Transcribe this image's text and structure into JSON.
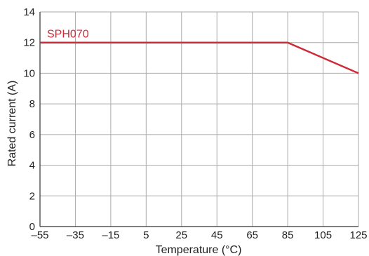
{
  "chart_data": {
    "type": "line",
    "title": "",
    "xlabel": "Temperature (°C)",
    "ylabel": "Rated current (A)",
    "xlim": [
      -55,
      125
    ],
    "ylim": [
      0,
      14
    ],
    "x_ticks": [
      -55,
      -35,
      -15,
      5,
      25,
      45,
      65,
      85,
      105,
      125
    ],
    "x_tick_labels": [
      "–55",
      "–35",
      "–15",
      "5",
      "25",
      "45",
      "65",
      "85",
      "105",
      "125"
    ],
    "y_ticks": [
      0,
      2,
      4,
      6,
      8,
      10,
      12,
      14
    ],
    "y_tick_labels": [
      "0",
      "2",
      "4",
      "6",
      "8",
      "10",
      "12",
      "14"
    ],
    "grid": true,
    "legend": "none",
    "series": [
      {
        "name": "SPH070",
        "color": "#cc2a36",
        "points": [
          {
            "x": -55,
            "y": 12
          },
          {
            "x": 85,
            "y": 12
          },
          {
            "x": 125,
            "y": 10
          }
        ]
      }
    ],
    "colors": {
      "grid": "#aaaaaa",
      "axis": "#333333",
      "series": "#cc2a36"
    }
  }
}
